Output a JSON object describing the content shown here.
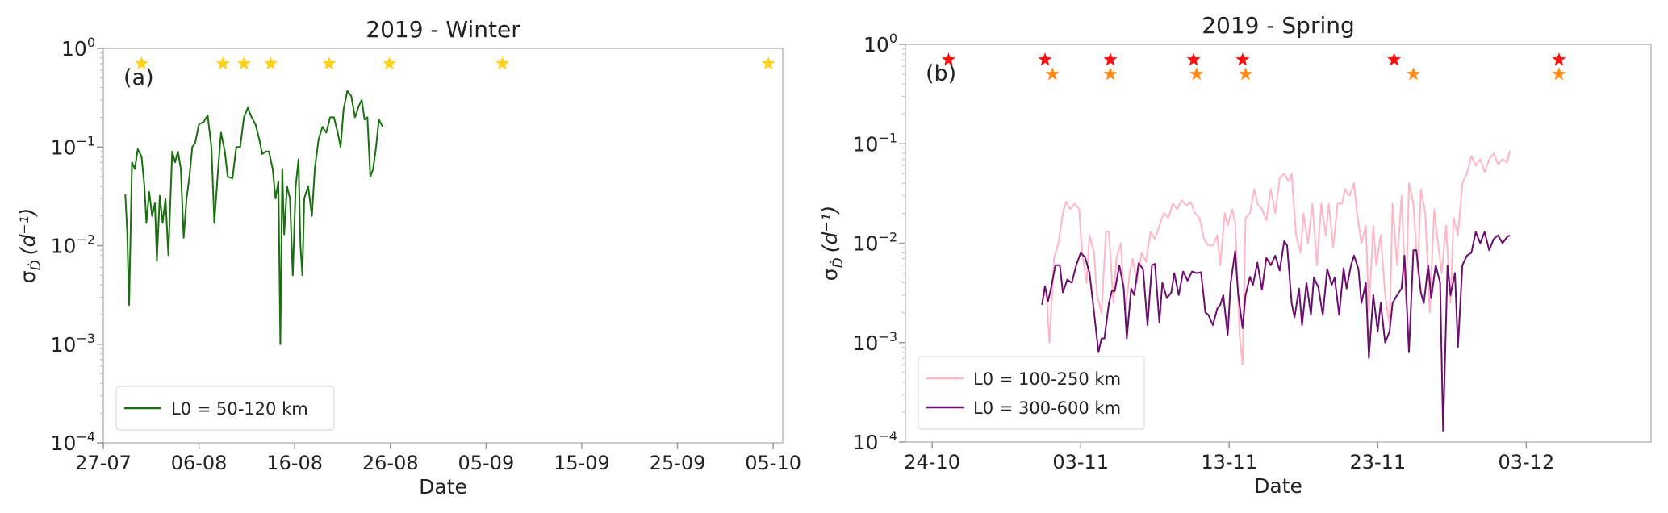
{
  "chart_data": [
    {
      "type": "line",
      "title": "2019 - Winter",
      "panel_label": "(a)",
      "xlabel": "Date",
      "ylabel": {
        "symbol": "σ",
        "sub": "Ḋ",
        "unit": "(d⁻¹)"
      },
      "x_unit": "days since 2019-07-27",
      "xlim": [
        0,
        71
      ],
      "yscale": "log",
      "ylim": [
        0.0001,
        1
      ],
      "yticks": [
        {
          "v": 1,
          "label": "10",
          "exp": "0"
        },
        {
          "v": 0.1,
          "label": "10",
          "exp": "−1"
        },
        {
          "v": 0.01,
          "label": "10",
          "exp": "−2"
        },
        {
          "v": 0.001,
          "label": "10",
          "exp": "−3"
        },
        {
          "v": 0.0001,
          "label": "10",
          "exp": "−4"
        }
      ],
      "xticks": [
        {
          "v": 0,
          "label": "27-07"
        },
        {
          "v": 10,
          "label": "06-08"
        },
        {
          "v": 20,
          "label": "16-08"
        },
        {
          "v": 30,
          "label": "26-08"
        },
        {
          "v": 40,
          "label": "05-09"
        },
        {
          "v": 50,
          "label": "15-09"
        },
        {
          "v": 60,
          "label": "25-09"
        },
        {
          "v": 70,
          "label": "05-10"
        }
      ],
      "legend_position": "lower-left",
      "series": [
        {
          "name": "L0 = 50-120 km",
          "color": "#1a7010",
          "x": [
            2.3,
            2.5,
            2.7,
            3.0,
            3.3,
            3.6,
            4.0,
            4.3,
            4.5,
            4.8,
            5.1,
            5.4,
            5.6,
            5.9,
            6.2,
            6.5,
            6.8,
            7.2,
            7.5,
            7.8,
            8.1,
            8.4,
            8.7,
            9.0,
            9.3,
            9.6,
            10.0,
            10.5,
            10.9,
            11.3,
            11.6,
            12.0,
            12.3,
            12.7,
            13.0,
            13.5,
            13.9,
            14.3,
            14.7,
            15.1,
            15.5,
            15.9,
            16.3,
            16.6,
            17.0,
            17.3,
            17.7,
            18.0,
            18.3,
            18.5,
            18.7,
            18.9,
            19.2,
            19.5,
            19.8,
            20.1,
            20.4,
            20.6,
            20.8,
            21.0,
            21.4,
            21.8,
            22.1,
            22.5,
            22.9,
            23.3,
            23.7,
            24.1,
            24.5,
            24.8,
            25.1,
            25.5,
            25.9,
            26.3,
            26.7,
            27.0,
            27.3,
            27.6,
            27.9,
            28.2,
            28.5,
            28.8,
            29.2
          ],
          "y": [
            0.033,
            0.014,
            0.0025,
            0.07,
            0.06,
            0.095,
            0.08,
            0.04,
            0.017,
            0.035,
            0.02,
            0.027,
            0.007,
            0.032,
            0.017,
            0.03,
            0.008,
            0.09,
            0.07,
            0.09,
            0.06,
            0.012,
            0.03,
            0.05,
            0.1,
            0.11,
            0.17,
            0.18,
            0.21,
            0.1,
            0.017,
            0.06,
            0.14,
            0.09,
            0.05,
            0.048,
            0.1,
            0.1,
            0.2,
            0.25,
            0.2,
            0.17,
            0.12,
            0.085,
            0.09,
            0.09,
            0.06,
            0.03,
            0.045,
            0.001,
            0.06,
            0.013,
            0.04,
            0.03,
            0.005,
            0.04,
            0.075,
            0.01,
            0.005,
            0.03,
            0.04,
            0.02,
            0.06,
            0.12,
            0.16,
            0.14,
            0.2,
            0.2,
            0.14,
            0.1,
            0.24,
            0.37,
            0.33,
            0.2,
            0.26,
            0.3,
            0.19,
            0.2,
            0.05,
            0.06,
            0.1,
            0.19,
            0.16
          ]
        }
      ],
      "markers": [
        {
          "color": "#ffd21a",
          "y": 0.7,
          "x": [
            4.0,
            12.5,
            14.7,
            17.5,
            23.6,
            29.9,
            41.7,
            69.5
          ]
        }
      ]
    },
    {
      "type": "line",
      "title": "2019 - Spring",
      "panel_label": "(b)",
      "xlabel": "Date",
      "ylabel": {
        "symbol": "σ",
        "sub": "Ḋ",
        "unit": "(d⁻¹)"
      },
      "x_unit": "days since 2019-10-24",
      "xlim": [
        -1.8,
        48.4
      ],
      "yscale": "log",
      "ylim": [
        0.0001,
        1
      ],
      "yticks": [
        {
          "v": 1,
          "label": "10",
          "exp": "0"
        },
        {
          "v": 0.1,
          "label": "10",
          "exp": "−1"
        },
        {
          "v": 0.01,
          "label": "10",
          "exp": "−2"
        },
        {
          "v": 0.001,
          "label": "10",
          "exp": "−3"
        },
        {
          "v": 0.0001,
          "label": "10",
          "exp": "−4"
        }
      ],
      "xticks": [
        {
          "v": 0,
          "label": "24-10"
        },
        {
          "v": 10,
          "label": "03-11"
        },
        {
          "v": 20,
          "label": "13-11"
        },
        {
          "v": 30,
          "label": "23-11"
        },
        {
          "v": 40,
          "label": "03-12"
        }
      ],
      "legend_position": "lower-left",
      "series": [
        {
          "name": "L0 = 100-250 km",
          "color": "#ffb6c6",
          "x": [
            7.4,
            7.7,
            7.9,
            8.2,
            8.5,
            8.8,
            9.0,
            9.3,
            9.6,
            9.9,
            10.1,
            10.4,
            10.6,
            10.9,
            11.1,
            11.4,
            11.7,
            11.9,
            12.2,
            12.4,
            12.7,
            13.0,
            13.3,
            13.5,
            13.8,
            14.1,
            14.4,
            14.7,
            15.0,
            15.3,
            15.6,
            15.9,
            16.2,
            16.5,
            16.8,
            17.1,
            17.4,
            17.7,
            18.0,
            18.3,
            18.6,
            18.9,
            19.2,
            19.4,
            19.7,
            19.9,
            20.2,
            20.4,
            20.7,
            20.9,
            21.1,
            21.4,
            21.7,
            21.9,
            22.2,
            22.5,
            22.8,
            23.1,
            23.4,
            23.7,
            24.0,
            24.2,
            24.5,
            24.8,
            25.0,
            25.3,
            25.6,
            25.9,
            26.2,
            26.5,
            26.7,
            27.0,
            27.3,
            27.6,
            27.8,
            28.1,
            28.4,
            28.6,
            28.9,
            29.2,
            29.4,
            29.7,
            29.9,
            30.2,
            30.5,
            30.8,
            31.0,
            31.3,
            31.6,
            31.9,
            32.1,
            32.4,
            32.7,
            32.9,
            33.2,
            33.5,
            33.8,
            34.0,
            34.3,
            34.6,
            34.9,
            35.1,
            35.4,
            35.7,
            36.0,
            36.3,
            36.6,
            36.9,
            37.2,
            37.5,
            37.8,
            38.1,
            38.4,
            38.7,
            38.9
          ],
          "y": [
            0.003,
            0.003,
            0.001,
            0.007,
            0.01,
            0.02,
            0.026,
            0.022,
            0.025,
            0.022,
            0.008,
            0.004,
            0.012,
            0.008,
            0.003,
            0.002,
            0.013,
            0.013,
            0.0025,
            0.007,
            0.01,
            0.002,
            0.005,
            0.007,
            0.004,
            0.008,
            0.0065,
            0.013,
            0.011,
            0.015,
            0.02,
            0.018,
            0.025,
            0.022,
            0.027,
            0.024,
            0.026,
            0.02,
            0.018,
            0.011,
            0.0095,
            0.0095,
            0.012,
            0.006,
            0.02,
            0.015,
            0.022,
            0.016,
            0.0012,
            0.0006,
            0.018,
            0.02,
            0.035,
            0.025,
            0.022,
            0.017,
            0.035,
            0.02,
            0.045,
            0.05,
            0.042,
            0.05,
            0.012,
            0.008,
            0.02,
            0.01,
            0.025,
            0.006,
            0.025,
            0.012,
            0.025,
            0.009,
            0.025,
            0.025,
            0.035,
            0.03,
            0.04,
            0.02,
            0.01,
            0.015,
            0.002,
            0.015,
            0.006,
            0.012,
            0.003,
            0.0015,
            0.025,
            0.006,
            0.03,
            0.0025,
            0.04,
            0.025,
            0.005,
            0.035,
            0.02,
            0.002,
            0.022,
            0.012,
            0.005,
            0.015,
            0.0025,
            0.018,
            0.012,
            0.04,
            0.05,
            0.075,
            0.06,
            0.07,
            0.052,
            0.07,
            0.08,
            0.062,
            0.07,
            0.065,
            0.085
          ]
        },
        {
          "name": "L0 = 300-600 km",
          "color": "#6a0f6e",
          "x": [
            7.4,
            7.6,
            7.8,
            8.0,
            8.3,
            8.6,
            8.8,
            9.1,
            9.4,
            9.7,
            10.0,
            10.3,
            10.6,
            10.9,
            11.2,
            11.4,
            11.6,
            11.9,
            12.1,
            12.3,
            12.6,
            12.9,
            13.1,
            13.4,
            13.6,
            13.9,
            14.2,
            14.5,
            14.8,
            15.0,
            15.3,
            15.5,
            15.8,
            16.1,
            16.3,
            16.6,
            16.9,
            17.2,
            17.5,
            17.8,
            18.1,
            18.4,
            18.6,
            18.9,
            19.2,
            19.4,
            19.6,
            19.9,
            20.1,
            20.4,
            20.6,
            20.9,
            21.1,
            21.4,
            21.6,
            21.9,
            22.2,
            22.5,
            22.8,
            23.1,
            23.4,
            23.7,
            23.9,
            24.2,
            24.4,
            24.7,
            24.9,
            25.2,
            25.5,
            25.7,
            26.0,
            26.3,
            26.6,
            26.9,
            27.1,
            27.4,
            27.7,
            27.9,
            28.2,
            28.4,
            28.7,
            28.9,
            29.2,
            29.4,
            29.7,
            30.0,
            30.2,
            30.5,
            30.8,
            31.0,
            31.3,
            31.6,
            31.8,
            32.1,
            32.4,
            32.6,
            32.9,
            33.1,
            33.4,
            33.6,
            33.9,
            34.2,
            34.4,
            34.7,
            34.9,
            35.2,
            35.4,
            35.7,
            36.0,
            36.3,
            36.6,
            36.9,
            37.2,
            37.5,
            37.8,
            38.1,
            38.4,
            38.7,
            38.9
          ],
          "y": [
            0.0024,
            0.0037,
            0.0026,
            0.0035,
            0.006,
            0.006,
            0.0032,
            0.0043,
            0.004,
            0.006,
            0.008,
            0.0072,
            0.005,
            0.002,
            0.0008,
            0.0011,
            0.0011,
            0.0025,
            0.0033,
            0.0033,
            0.006,
            0.0035,
            0.0011,
            0.0035,
            0.003,
            0.0063,
            0.0055,
            0.0015,
            0.006,
            0.0062,
            0.0016,
            0.004,
            0.0028,
            0.0032,
            0.005,
            0.003,
            0.0052,
            0.0042,
            0.0052,
            0.005,
            0.0051,
            0.002,
            0.0019,
            0.0015,
            0.0022,
            0.0024,
            0.003,
            0.0012,
            0.004,
            0.0083,
            0.0031,
            0.0014,
            0.003,
            0.0046,
            0.0038,
            0.0064,
            0.0034,
            0.0071,
            0.006,
            0.0075,
            0.0053,
            0.0105,
            0.0095,
            0.0025,
            0.0018,
            0.0035,
            0.0015,
            0.004,
            0.0019,
            0.0045,
            0.0036,
            0.0019,
            0.0055,
            0.0038,
            0.0045,
            0.0019,
            0.0056,
            0.0035,
            0.006,
            0.0075,
            0.0055,
            0.0025,
            0.004,
            0.0007,
            0.003,
            0.0013,
            0.0025,
            0.001,
            0.0013,
            0.0025,
            0.003,
            0.0035,
            0.0075,
            0.0008,
            0.0085,
            0.0085,
            0.0032,
            0.0025,
            0.006,
            0.0028,
            0.006,
            0.004,
            0.00013,
            0.006,
            0.003,
            0.005,
            0.0009,
            0.006,
            0.0075,
            0.008,
            0.013,
            0.01,
            0.013,
            0.0085,
            0.011,
            0.012,
            0.01,
            0.0115,
            0.012
          ]
        }
      ],
      "markers": [
        {
          "color": "#ff1010",
          "y": 0.7,
          "x": [
            1.1,
            7.6,
            12.0,
            17.6,
            20.9,
            31.1,
            42.2
          ]
        },
        {
          "color": "#ff8c1a",
          "y": 0.5,
          "x": [
            8.1,
            12.0,
            17.8,
            21.1,
            32.4,
            42.2
          ]
        }
      ]
    }
  ]
}
